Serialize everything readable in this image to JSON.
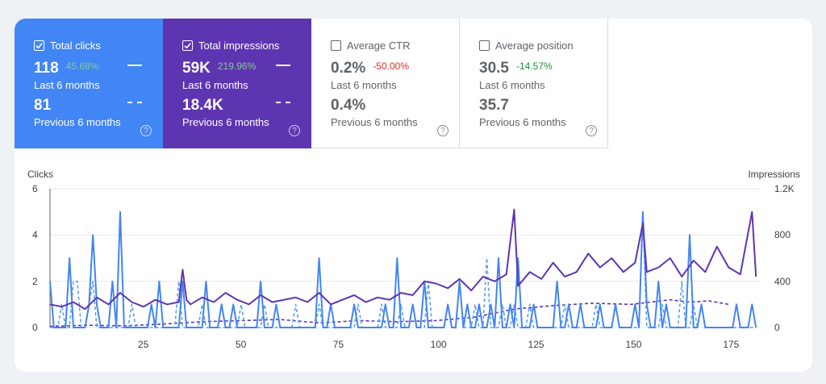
{
  "cards": {
    "clicks": {
      "label": "Total clicks",
      "checked": true,
      "current": "118",
      "change": "45.68%",
      "current_period": "Last 6 months",
      "previous": "81",
      "previous_period": "Previous 6 months"
    },
    "impressions": {
      "label": "Total impressions",
      "checked": true,
      "current": "59K",
      "change": "219.96%",
      "current_period": "Last 6 months",
      "previous": "18.4K",
      "previous_period": "Previous 6 months"
    },
    "ctr": {
      "label": "Average CTR",
      "checked": false,
      "current": "0.2%",
      "change": "-50.00%",
      "current_period": "Last 6 months",
      "previous": "0.4%",
      "previous_period": "Previous 6 months"
    },
    "position": {
      "label": "Average position",
      "checked": false,
      "current": "30.5",
      "change": "-14.57%",
      "current_period": "Last 6 months",
      "previous": "35.7",
      "previous_period": "Previous 6 months"
    }
  },
  "help_glyph": "?",
  "colors": {
    "clicks": "#4285f4",
    "clicks_prev": "#5aa0f0",
    "impressions": "#5e35b1",
    "positive": "#81c995",
    "negative": "#d93025",
    "positive_dark": "#1e8e3e"
  },
  "chart_data": {
    "type": "line",
    "left_axis": {
      "title": "Clicks",
      "ticks": [
        "0",
        "2",
        "4",
        "6"
      ],
      "range": [
        0,
        6
      ]
    },
    "right_axis": {
      "title": "Impressions",
      "ticks": [
        "0",
        "400",
        "800",
        "1.2K"
      ],
      "range": [
        0,
        1200
      ]
    },
    "x_axis": {
      "ticks": [
        "25",
        "50",
        "75",
        "100",
        "125",
        "150",
        "175"
      ],
      "tick_values": [
        25,
        50,
        75,
        100,
        125,
        150,
        175
      ],
      "range": [
        1,
        183
      ]
    },
    "series": [
      {
        "name": "Clicks (Last 6 months)",
        "axis": "left",
        "style": "solid",
        "color": "#4285f4",
        "x": [
          1,
          2,
          3,
          4,
          5,
          6,
          7,
          8,
          9,
          10,
          11,
          12,
          13,
          14,
          15,
          16,
          17,
          18,
          19,
          20,
          21,
          22,
          23,
          24,
          25,
          26,
          27,
          28,
          29,
          30,
          31,
          32,
          33,
          34,
          35,
          36,
          37,
          38,
          39,
          40,
          41,
          42,
          43,
          44,
          45,
          46,
          47,
          48,
          49,
          50,
          51,
          52,
          53,
          54,
          55,
          56,
          57,
          58,
          59,
          60,
          61,
          62,
          63,
          64,
          65,
          66,
          67,
          68,
          69,
          70,
          71,
          72,
          73,
          74,
          75,
          76,
          77,
          78,
          79,
          80,
          81,
          82,
          83,
          84,
          85,
          86,
          87,
          88,
          89,
          90,
          91,
          92,
          93,
          94,
          95,
          96,
          97,
          98,
          99,
          100,
          101,
          102,
          103,
          104,
          105,
          106,
          107,
          108,
          109,
          110,
          111,
          112,
          113,
          114,
          115,
          116,
          117,
          118,
          119,
          120,
          121,
          122,
          123,
          124,
          125,
          126,
          127,
          128,
          129,
          130,
          131,
          132,
          133,
          134,
          135,
          136,
          137,
          138,
          139,
          140,
          141,
          142,
          143,
          144,
          145,
          146,
          147,
          148,
          149,
          150,
          151,
          152,
          153,
          154,
          155,
          156,
          157,
          158,
          159,
          160,
          161,
          162,
          163,
          164,
          165,
          166,
          167,
          168,
          169,
          170,
          171,
          172,
          173,
          174,
          175,
          176,
          177,
          178,
          179,
          180,
          181,
          182
        ],
        "values": [
          2,
          0,
          0,
          0,
          0,
          3,
          0,
          0,
          0,
          0,
          1,
          4,
          1,
          0,
          0,
          0,
          2,
          0,
          5,
          0,
          0,
          0,
          0,
          0,
          0,
          0,
          1,
          0,
          2,
          0,
          0,
          0,
          0,
          0,
          2,
          0,
          0,
          0,
          0,
          0,
          2,
          0,
          0,
          0,
          1,
          0,
          0,
          1,
          0,
          0,
          0,
          0,
          0,
          0,
          2,
          0,
          0,
          0,
          1,
          0,
          0,
          0,
          0,
          0,
          0,
          0,
          0,
          0,
          0,
          3,
          0,
          0,
          1,
          0,
          0,
          0,
          0,
          0,
          1,
          0,
          0,
          0,
          0,
          0,
          0,
          0,
          1,
          0,
          0,
          3,
          0,
          0,
          0,
          1,
          0,
          0,
          2,
          0,
          0,
          0,
          0,
          0,
          1,
          0,
          0,
          2,
          0,
          1,
          0,
          0,
          1,
          0,
          0,
          1,
          0,
          3,
          0,
          0,
          1,
          0,
          3,
          0,
          0,
          0,
          1,
          0,
          0,
          0,
          0,
          0,
          2,
          0,
          0,
          1,
          0,
          0,
          1,
          0,
          0,
          0,
          0,
          1,
          0,
          0,
          0,
          1,
          0,
          0,
          0,
          0,
          1,
          0,
          5,
          1,
          0,
          0,
          2,
          0,
          1,
          0,
          0,
          0,
          0,
          0,
          4,
          0,
          0,
          1,
          0,
          0,
          0,
          0,
          0,
          0,
          0,
          0,
          1,
          0,
          0,
          0,
          1,
          0
        ]
      },
      {
        "name": "Clicks (Previous 6 months)",
        "axis": "left",
        "style": "dashed",
        "color": "#5aa0f0",
        "x": [
          1,
          2,
          3,
          4,
          5,
          6,
          7,
          8,
          9,
          10,
          11,
          12,
          13,
          14,
          15,
          16,
          17,
          18,
          19,
          20,
          21,
          22,
          23,
          24,
          25,
          26,
          27,
          28,
          29,
          30,
          31,
          32,
          33,
          34,
          35,
          36,
          37,
          38,
          39,
          40,
          41,
          42,
          43,
          44,
          45,
          46,
          47,
          48,
          49,
          50,
          51,
          52,
          53,
          54,
          55,
          56,
          57,
          58,
          59,
          60,
          61,
          62,
          63,
          64,
          65,
          66,
          67,
          68,
          69,
          70,
          71,
          72,
          73,
          74,
          75,
          76,
          77,
          78,
          79,
          80,
          81,
          82,
          83,
          84,
          85,
          86,
          87,
          88,
          89,
          90,
          91,
          92,
          93,
          94,
          95,
          96,
          97,
          98,
          99,
          100,
          101,
          102,
          103,
          104,
          105,
          106,
          107,
          108,
          109,
          110,
          111,
          112,
          113,
          114,
          115,
          116,
          117,
          118,
          119,
          120,
          121,
          122,
          123,
          124,
          125,
          126,
          127,
          128,
          129,
          130,
          131,
          132,
          133,
          134,
          135,
          136,
          137,
          138,
          139,
          140,
          141,
          142,
          143,
          144,
          145,
          146,
          147,
          148,
          149,
          150,
          151,
          152,
          153,
          154,
          155,
          156,
          157,
          158,
          159,
          160,
          161,
          162,
          163,
          164,
          165,
          166,
          167,
          168,
          169,
          170,
          171,
          172,
          173,
          174,
          175,
          176,
          177,
          178,
          179,
          180,
          181,
          182
        ],
        "values": [
          0,
          0,
          0,
          1,
          0,
          0,
          2,
          2,
          0,
          0,
          1,
          2,
          0,
          0,
          0,
          0,
          0,
          0,
          0,
          0,
          0,
          1,
          0,
          0,
          0,
          0,
          0,
          0,
          0,
          0,
          0,
          0,
          0,
          2,
          0,
          0,
          0,
          0,
          0,
          1,
          0,
          0,
          0,
          0,
          0,
          0,
          0,
          0,
          0,
          1,
          0,
          0,
          0,
          0,
          0,
          1,
          0,
          0,
          0,
          0,
          0,
          0,
          0,
          1,
          0,
          0,
          0,
          0,
          0,
          1,
          0,
          0,
          0,
          0,
          0,
          0,
          0,
          0,
          0,
          1,
          0,
          0,
          0,
          0,
          0,
          1,
          0,
          0,
          0,
          0,
          1,
          0,
          0,
          1,
          0,
          0,
          0,
          2,
          0,
          0,
          0,
          0,
          1,
          0,
          0,
          2,
          0,
          0,
          0,
          1,
          0,
          0,
          3,
          0,
          0,
          0,
          1,
          0,
          0,
          1,
          0,
          0,
          0,
          1,
          0,
          0,
          0,
          0,
          0,
          0,
          0,
          0,
          1,
          0,
          0,
          0,
          0,
          0,
          0,
          0,
          1,
          0,
          0,
          0,
          0,
          1,
          0,
          0,
          0,
          0,
          0,
          0,
          5,
          0,
          0,
          0,
          0,
          1,
          0,
          0,
          0,
          0,
          2,
          0,
          0,
          1,
          0,
          1,
          0,
          0,
          0,
          0,
          0,
          0,
          0,
          0,
          0,
          0,
          0,
          0,
          0,
          0
        ]
      },
      {
        "name": "Impressions (Last 6 months)",
        "axis": "right",
        "style": "solid",
        "color": "#5e35b1",
        "x": [
          1,
          4,
          7,
          10,
          13,
          16,
          19,
          22,
          25,
          28,
          31,
          34,
          35,
          36,
          37,
          40,
          43,
          46,
          49,
          52,
          55,
          58,
          61,
          64,
          67,
          70,
          73,
          76,
          79,
          82,
          85,
          88,
          91,
          94,
          97,
          100,
          103,
          106,
          109,
          112,
          115,
          118,
          120,
          121,
          122,
          124,
          127,
          130,
          133,
          136,
          139,
          142,
          145,
          148,
          151,
          153,
          154,
          157,
          160,
          163,
          166,
          169,
          172,
          175,
          178,
          181,
          182
        ],
        "values": [
          200,
          180,
          220,
          160,
          260,
          200,
          300,
          220,
          180,
          240,
          200,
          220,
          500,
          240,
          200,
          260,
          220,
          300,
          240,
          200,
          280,
          220,
          240,
          260,
          220,
          300,
          200,
          240,
          280,
          220,
          260,
          240,
          300,
          280,
          400,
          380,
          340,
          420,
          320,
          440,
          400,
          460,
          1020,
          360,
          400,
          480,
          420,
          560,
          440,
          480,
          640,
          520,
          600,
          480,
          560,
          900,
          480,
          520,
          600,
          440,
          580,
          480,
          700,
          520,
          460,
          1000,
          440
        ]
      },
      {
        "name": "Impressions (Previous 6 months)",
        "axis": "right",
        "style": "dashed",
        "color": "#5e35b1",
        "x": [
          1,
          10,
          20,
          30,
          40,
          50,
          60,
          70,
          80,
          90,
          100,
          110,
          120,
          130,
          140,
          150,
          160,
          165,
          170,
          175
        ],
        "values": [
          10,
          20,
          15,
          30,
          50,
          60,
          70,
          40,
          60,
          50,
          60,
          90,
          160,
          190,
          210,
          200,
          240,
          220,
          230,
          200
        ]
      }
    ]
  }
}
